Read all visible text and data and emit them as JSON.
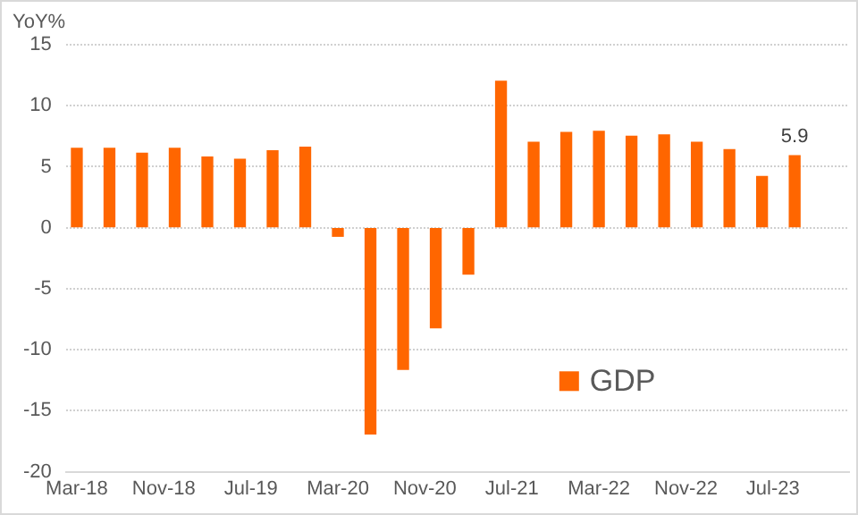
{
  "chart_data": {
    "type": "bar",
    "ylabel": "YoY%",
    "x": [
      "2018-03",
      "2018-06",
      "2018-09",
      "2018-12",
      "2019-03",
      "2019-06",
      "2019-09",
      "2019-12",
      "2020-03",
      "2020-06",
      "2020-09",
      "2020-12",
      "2021-03",
      "2021-06",
      "2021-09",
      "2021-12",
      "2022-03",
      "2022-06",
      "2022-09",
      "2022-12",
      "2023-03",
      "2023-06",
      "2023-09"
    ],
    "series": [
      {
        "name": "GDP",
        "color": "#ff6600",
        "values": [
          6.5,
          6.5,
          6.1,
          6.5,
          5.8,
          5.6,
          6.3,
          6.6,
          -0.7,
          -16.9,
          -11.6,
          -8.2,
          -3.8,
          12.0,
          7.0,
          7.8,
          7.9,
          7.5,
          7.6,
          7.0,
          6.4,
          4.2,
          5.9
        ],
        "value_labels": [
          null,
          null,
          null,
          null,
          null,
          null,
          null,
          null,
          null,
          null,
          null,
          null,
          null,
          null,
          null,
          null,
          null,
          null,
          null,
          null,
          null,
          null,
          "5.9"
        ]
      }
    ],
    "xlim": [
      "2018-02",
      "2024-02"
    ],
    "xticks": [
      {
        "value": "2018-03",
        "label": "Mar-18"
      },
      {
        "value": "2018-11",
        "label": "Nov-18"
      },
      {
        "value": "2019-07",
        "label": "Jul-19"
      },
      {
        "value": "2020-03",
        "label": "Mar-20"
      },
      {
        "value": "2020-11",
        "label": "Nov-20"
      },
      {
        "value": "2021-07",
        "label": "Jul-21"
      },
      {
        "value": "2022-03",
        "label": "Mar-22"
      },
      {
        "value": "2022-11",
        "label": "Nov-22"
      },
      {
        "value": "2023-07",
        "label": "Jul-23"
      }
    ],
    "ylim": [
      -20,
      15
    ],
    "yticks": [
      -20,
      -15,
      -10,
      -5,
      0,
      5,
      10,
      15
    ],
    "grid": "y",
    "legend": "bottom right"
  }
}
